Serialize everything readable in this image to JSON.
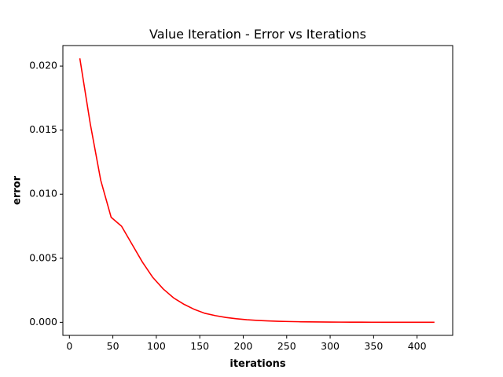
{
  "chart_data": {
    "type": "line",
    "title": "Value Iteration - Error vs Iterations",
    "xlabel": "iterations",
    "ylabel": "error",
    "xlim": [
      -7.5,
      441
    ],
    "ylim": [
      -0.00102,
      0.0216
    ],
    "xticks": [
      0,
      50,
      100,
      150,
      200,
      250,
      300,
      350,
      400
    ],
    "xtick_labels": [
      "0",
      "50",
      "100",
      "150",
      "200",
      "250",
      "300",
      "350",
      "400"
    ],
    "yticks": [
      0.0,
      0.005,
      0.01,
      0.015,
      0.02
    ],
    "ytick_labels": [
      "0.000",
      "0.005",
      "0.010",
      "0.015",
      "0.020"
    ],
    "grid": false,
    "series": [
      {
        "color": "#ff0000",
        "x": [
          12,
          24,
          36,
          48,
          60,
          72,
          84,
          96,
          108,
          120,
          132,
          144,
          156,
          168,
          180,
          192,
          204,
          216,
          228,
          240,
          252,
          264,
          276,
          288,
          300,
          312,
          324,
          336,
          348,
          360,
          372,
          384,
          396,
          408,
          420
        ],
        "values": [
          0.0206,
          0.0155,
          0.0111,
          0.0082,
          0.0075,
          0.0061,
          0.0047,
          0.0035,
          0.0026,
          0.0019,
          0.0014,
          0.001,
          0.0007,
          0.00052,
          0.00038,
          0.00028,
          0.0002,
          0.00015,
          0.00011,
          8e-05,
          6e-05,
          4.5e-05,
          3.3e-05,
          2.5e-05,
          1.9e-05,
          1.4e-05,
          1e-05,
          8e-06,
          6e-06,
          4.5e-06,
          3.4e-06,
          2.6e-06,
          2e-06,
          1.5e-06,
          1.1e-06
        ]
      }
    ]
  }
}
